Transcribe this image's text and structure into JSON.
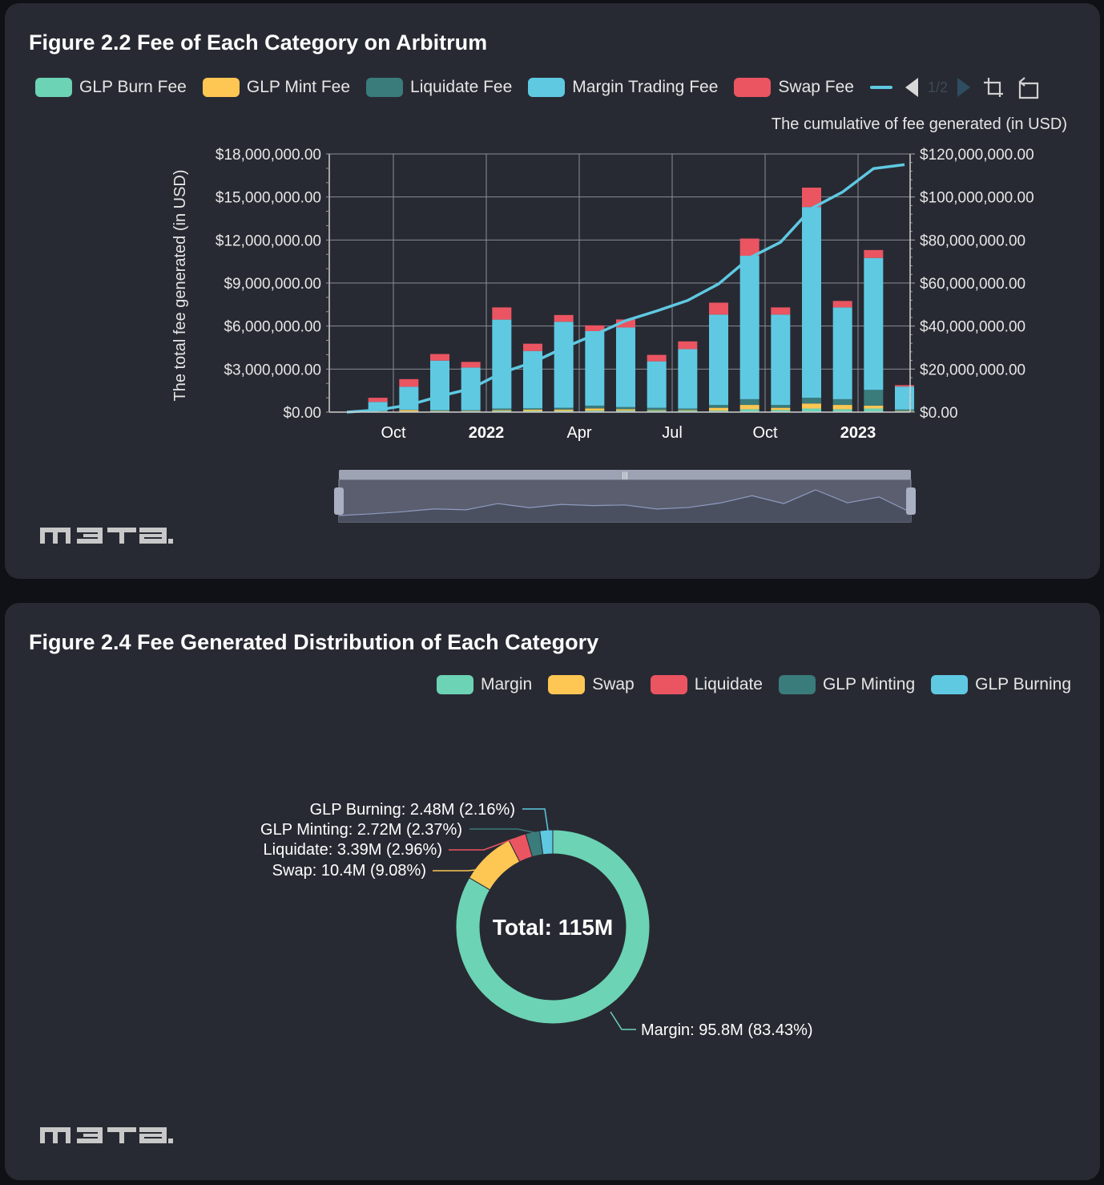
{
  "colors": {
    "glp_burn": "#6cd3b4",
    "glp_mint": "#fec653",
    "liquidate": "#3a7b7b",
    "margin": "#5fc9e2",
    "swap": "#ea5561",
    "line": "#5fc9e2",
    "card_bg": "#282a33"
  },
  "logo_text": "m3ta",
  "figure1": {
    "title": "Figure 2.2 Fee of Each Category on Arbitrum",
    "legend": [
      "GLP Burn Fee",
      "GLP Mint Fee",
      "Liquidate Fee",
      "Margin Trading Fee",
      "Swap Fee"
    ],
    "pager_text": "1/2",
    "icons": [
      "arrow-left-icon",
      "arrow-right-icon",
      "zoom-select-icon",
      "zoom-reset-icon"
    ]
  },
  "figure2": {
    "title": "Figure 2.4 Fee Generated Distribution of Each Category",
    "legend": [
      "Margin",
      "Swap",
      "Liquidate",
      "GLP Minting",
      "GLP Burning"
    ]
  },
  "chart_data": [
    {
      "type": "bar",
      "title": "Figure 2.2 Fee of Each Category on Arbitrum",
      "ylabel": "The total fee generated (in USD)",
      "y2label": "The cumulative of fee generated (in USD)",
      "ylim": [
        0,
        18000000
      ],
      "y2lim": [
        0,
        120000000
      ],
      "yticks": [
        "$0.00",
        "$3,000,000.00",
        "$6,000,000.00",
        "$9,000,000.00",
        "$12,000,000.00",
        "$15,000,000.00",
        "$18,000,000.00"
      ],
      "y2ticks": [
        "$0.00",
        "$20,000,000.00",
        "$40,000,000.00",
        "$60,000,000.00",
        "$80,000,000.00",
        "$100,000,000.00",
        "$120,000,000.00"
      ],
      "xticks": [
        {
          "label": "Oct",
          "index": 2,
          "bold": false
        },
        {
          "label": "2022",
          "index": 5,
          "bold": true
        },
        {
          "label": "Apr",
          "index": 8,
          "bold": false
        },
        {
          "label": "Jul",
          "index": 11,
          "bold": false
        },
        {
          "label": "Oct",
          "index": 14,
          "bold": false
        },
        {
          "label": "2023",
          "index": 17,
          "bold": true
        }
      ],
      "grid": true,
      "legend_position": "top",
      "categories": [
        "2021-08",
        "2021-09",
        "2021-10",
        "2021-11",
        "2021-12",
        "2022-01",
        "2022-02",
        "2022-03",
        "2022-04",
        "2022-05",
        "2022-06",
        "2022-07",
        "2022-08",
        "2022-09",
        "2022-10",
        "2022-11",
        "2022-12",
        "2023-01",
        "2023-02"
      ],
      "series": [
        {
          "name": "GLP Burn Fee",
          "values": [
            0,
            20000,
            40000,
            70000,
            60000,
            90000,
            80000,
            80000,
            100000,
            100000,
            100000,
            100000,
            100000,
            200000,
            150000,
            250000,
            200000,
            250000,
            50000
          ]
        },
        {
          "name": "GLP Mint Fee",
          "values": [
            0,
            30000,
            100000,
            30000,
            30000,
            60000,
            100000,
            100000,
            150000,
            100000,
            50000,
            50000,
            200000,
            300000,
            150000,
            350000,
            300000,
            200000,
            30000
          ]
        },
        {
          "name": "Liquidate Fee",
          "values": [
            0,
            20000,
            30000,
            40000,
            40000,
            100000,
            80000,
            120000,
            200000,
            150000,
            150000,
            100000,
            200000,
            400000,
            200000,
            400000,
            400000,
            1100000,
            100000
          ]
        },
        {
          "name": "Margin Trading Fee",
          "values": [
            0,
            640000,
            1600000,
            3450000,
            2980000,
            6200000,
            4000000,
            6000000,
            5200000,
            5550000,
            3240000,
            4140000,
            6300000,
            10000000,
            6300000,
            13300000,
            6400000,
            9200000,
            1600000
          ]
        },
        {
          "name": "Swap Fee",
          "values": [
            0,
            290000,
            530000,
            460000,
            390000,
            850000,
            510000,
            470000,
            400000,
            560000,
            450000,
            540000,
            830000,
            1200000,
            500000,
            1350000,
            450000,
            550000,
            100000
          ]
        },
        {
          "name": "Cumulative",
          "axis": "right",
          "values": [
            0,
            1000000,
            3300000,
            7400000,
            10900000,
            18300000,
            23100000,
            29900000,
            36000000,
            42500000,
            47000000,
            51900000,
            59600000,
            71700000,
            79000000,
            94700000,
            102300000,
            113200000,
            115000000
          ]
        }
      ]
    },
    {
      "type": "pie",
      "title": "Figure 2.4 Fee Generated Distribution of Each Category",
      "center_label": "Total: 115M",
      "legend_position": "top-right",
      "slices": [
        {
          "name": "Margin",
          "value": 95.8,
          "label": "Margin: 95.8M (83.43%)"
        },
        {
          "name": "Swap",
          "value": 10.4,
          "label": "Swap: 10.4M (9.08%)"
        },
        {
          "name": "Liquidate",
          "value": 3.39,
          "label": "Liquidate: 3.39M (2.96%)"
        },
        {
          "name": "GLP Minting",
          "value": 2.72,
          "label": "GLP Minting: 2.72M (2.37%)"
        },
        {
          "name": "GLP Burning",
          "value": 2.48,
          "label": "GLP Burning: 2.48M (2.16%)"
        }
      ]
    }
  ]
}
